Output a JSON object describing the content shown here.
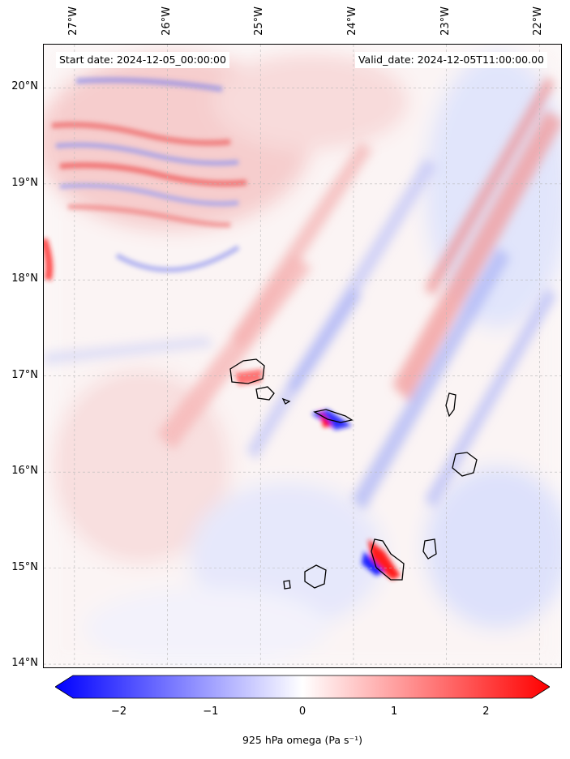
{
  "map": {
    "latitude_labels": [
      {
        "label": "20°N",
        "value": 20
      },
      {
        "label": "19°N",
        "value": 19
      },
      {
        "label": "18°N",
        "value": 18
      },
      {
        "label": "17°N",
        "value": 17
      },
      {
        "label": "16°N",
        "value": 16
      },
      {
        "label": "15°N",
        "value": 15
      },
      {
        "label": "14°N",
        "value": 14
      }
    ],
    "longitude_labels": [
      {
        "label": "27°W",
        "value": -27
      },
      {
        "label": "26°W",
        "value": -26
      },
      {
        "label": "25°W",
        "value": -25
      },
      {
        "label": "24°W",
        "value": -24
      },
      {
        "label": "23°W",
        "value": -23
      },
      {
        "label": "22°W",
        "value": -22
      }
    ],
    "extent": {
      "lon_min": -27.33,
      "lon_max": -21.75,
      "lat_min": 13.95,
      "lat_max": 20.45
    },
    "start_date": "Start date: 2024-12-05_00:00:00",
    "valid_date": "Valid_date: 2024-12-05T11:00:00.00",
    "gridlines": true,
    "field_colors": {
      "negative": "#0000ff",
      "neutral": "#ffffff",
      "positive": "#ff0000"
    }
  },
  "colorbar": {
    "ticks": [
      {
        "label": "−2",
        "value": -2
      },
      {
        "label": "−1",
        "value": -1
      },
      {
        "label": "0",
        "value": 0
      },
      {
        "label": "1",
        "value": 1
      },
      {
        "label": "2",
        "value": 2
      }
    ],
    "range": [
      -2.5,
      2.5
    ],
    "label": "925 hPa omega (Pa s⁻¹)"
  }
}
